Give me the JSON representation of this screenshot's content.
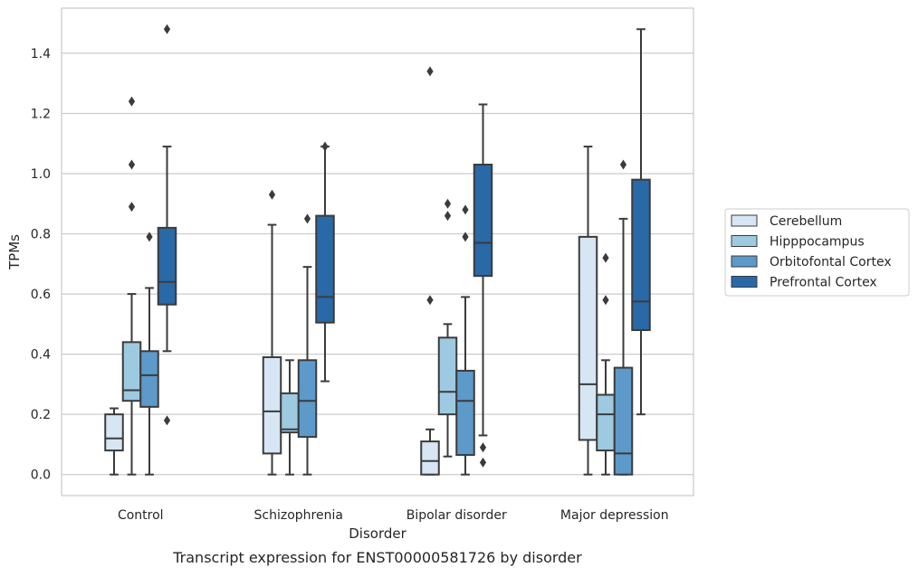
{
  "caption": "Transcript expression for ENST00000581726 by disorder",
  "chart_data": {
    "type": "box",
    "xlabel": "Disorder",
    "ylabel": "TPMs",
    "ylim": [
      -0.07,
      1.55
    ],
    "yticks": [
      0.0,
      0.2,
      0.4,
      0.6,
      0.8,
      1.0,
      1.2,
      1.4
    ],
    "ytick_labels": [
      "0.0",
      "0.2",
      "0.4",
      "0.6",
      "0.8",
      "1.0",
      "1.2",
      "1.4"
    ],
    "grid": true,
    "legend_position": "right",
    "categories": [
      "Control",
      "Schizophrenia",
      "Bipolar disorder",
      "Major depression"
    ],
    "series": [
      {
        "name": "Cerebellum",
        "color": "#d6e6f4",
        "boxes": [
          {
            "q1": 0.08,
            "median": 0.12,
            "q3": 0.2,
            "whisker_low": 0.0,
            "whisker_high": 0.22,
            "outliers": []
          },
          {
            "q1": 0.07,
            "median": 0.21,
            "q3": 0.39,
            "whisker_low": 0.0,
            "whisker_high": 0.83,
            "outliers": [
              0.93
            ]
          },
          {
            "q1": 0.0,
            "median": 0.045,
            "q3": 0.11,
            "whisker_low": 0.0,
            "whisker_high": 0.15,
            "outliers": [
              0.58,
              1.34
            ]
          },
          {
            "q1": 0.115,
            "median": 0.3,
            "q3": 0.79,
            "whisker_low": 0.0,
            "whisker_high": 1.09,
            "outliers": []
          }
        ]
      },
      {
        "name": "Hipppocampus",
        "color": "#9ecae1",
        "boxes": [
          {
            "q1": 0.245,
            "median": 0.28,
            "q3": 0.44,
            "whisker_low": 0.0,
            "whisker_high": 0.6,
            "outliers": [
              0.89,
              1.03,
              1.24
            ]
          },
          {
            "q1": 0.14,
            "median": 0.15,
            "q3": 0.27,
            "whisker_low": 0.0,
            "whisker_high": 0.38,
            "outliers": []
          },
          {
            "q1": 0.2,
            "median": 0.275,
            "q3": 0.455,
            "whisker_low": 0.06,
            "whisker_high": 0.5,
            "outliers": [
              0.86,
              0.9
            ]
          },
          {
            "q1": 0.08,
            "median": 0.2,
            "q3": 0.265,
            "whisker_low": 0.0,
            "whisker_high": 0.38,
            "outliers": [
              0.58,
              0.72
            ]
          }
        ]
      },
      {
        "name": "Orbitofontal Cortex",
        "color": "#5d9ac9",
        "boxes": [
          {
            "q1": 0.225,
            "median": 0.33,
            "q3": 0.41,
            "whisker_low": 0.0,
            "whisker_high": 0.62,
            "outliers": [
              0.79
            ]
          },
          {
            "q1": 0.125,
            "median": 0.245,
            "q3": 0.38,
            "whisker_low": 0.0,
            "whisker_high": 0.69,
            "outliers": [
              0.85
            ]
          },
          {
            "q1": 0.065,
            "median": 0.245,
            "q3": 0.345,
            "whisker_low": 0.0,
            "whisker_high": 0.59,
            "outliers": [
              0.79,
              0.88
            ]
          },
          {
            "q1": 0.0,
            "median": 0.07,
            "q3": 0.355,
            "whisker_low": 0.0,
            "whisker_high": 0.85,
            "outliers": [
              1.03
            ]
          }
        ]
      },
      {
        "name": "Prefrontal Cortex",
        "color": "#2a69a8",
        "boxes": [
          {
            "q1": 0.565,
            "median": 0.64,
            "q3": 0.82,
            "whisker_low": 0.41,
            "whisker_high": 1.09,
            "outliers": [
              0.18,
              1.48
            ]
          },
          {
            "q1": 0.505,
            "median": 0.59,
            "q3": 0.86,
            "whisker_low": 0.31,
            "whisker_high": 1.09,
            "outliers": [
              1.09
            ]
          },
          {
            "q1": 0.66,
            "median": 0.77,
            "q3": 1.03,
            "whisker_low": 0.13,
            "whisker_high": 1.23,
            "outliers": [
              0.04,
              0.09
            ]
          },
          {
            "q1": 0.48,
            "median": 0.575,
            "q3": 0.98,
            "whisker_low": 0.2,
            "whisker_high": 1.48,
            "outliers": []
          }
        ]
      }
    ]
  }
}
